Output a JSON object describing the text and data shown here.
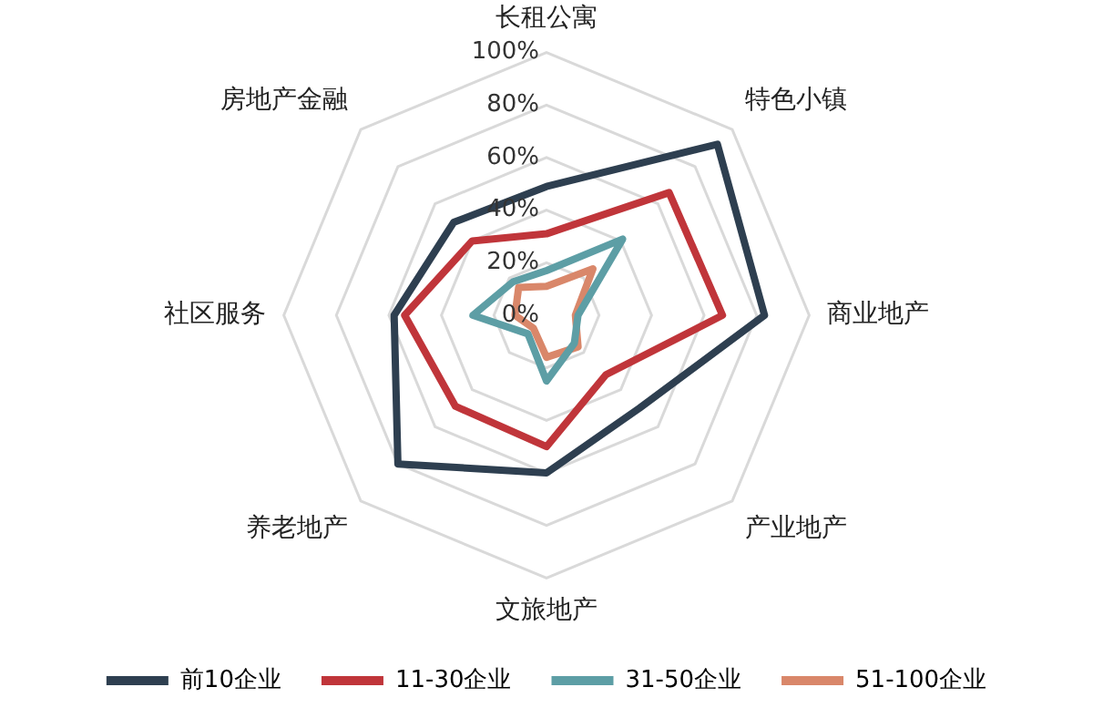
{
  "chart_data": {
    "type": "radar",
    "categories": [
      "长租公寓",
      "特色小镇",
      "商业地产",
      "产业地产",
      "文旅地产",
      "养老地产",
      "社区服务",
      "房地产金融"
    ],
    "series": [
      {
        "name": "前10企业",
        "color": "#2e3f50",
        "values": [
          49,
          92,
          83,
          50,
          60,
          80,
          58,
          50
        ]
      },
      {
        "name": "11-30企业",
        "color": "#c0353a",
        "values": [
          31,
          66,
          67,
          32,
          50,
          49,
          54,
          40
        ]
      },
      {
        "name": "31-50企业",
        "color": "#5d9ea5",
        "values": [
          17,
          41,
          12,
          15,
          25,
          10,
          28,
          18
        ]
      },
      {
        "name": "51-100企业",
        "color": "#d9876a",
        "values": [
          11,
          25,
          11,
          17,
          16,
          7,
          12,
          15
        ]
      }
    ],
    "ylim": [
      0,
      100
    ],
    "yticks": [
      {
        "value": 0,
        "label": "0%"
      },
      {
        "value": 20,
        "label": "20%"
      },
      {
        "value": 40,
        "label": "40%"
      },
      {
        "value": 60,
        "label": "60%"
      },
      {
        "value": 80,
        "label": "80%"
      },
      {
        "value": 100,
        "label": "100%"
      }
    ],
    "grid": true,
    "legend": "bottom",
    "marker": "none",
    "line_style": "solid"
  }
}
